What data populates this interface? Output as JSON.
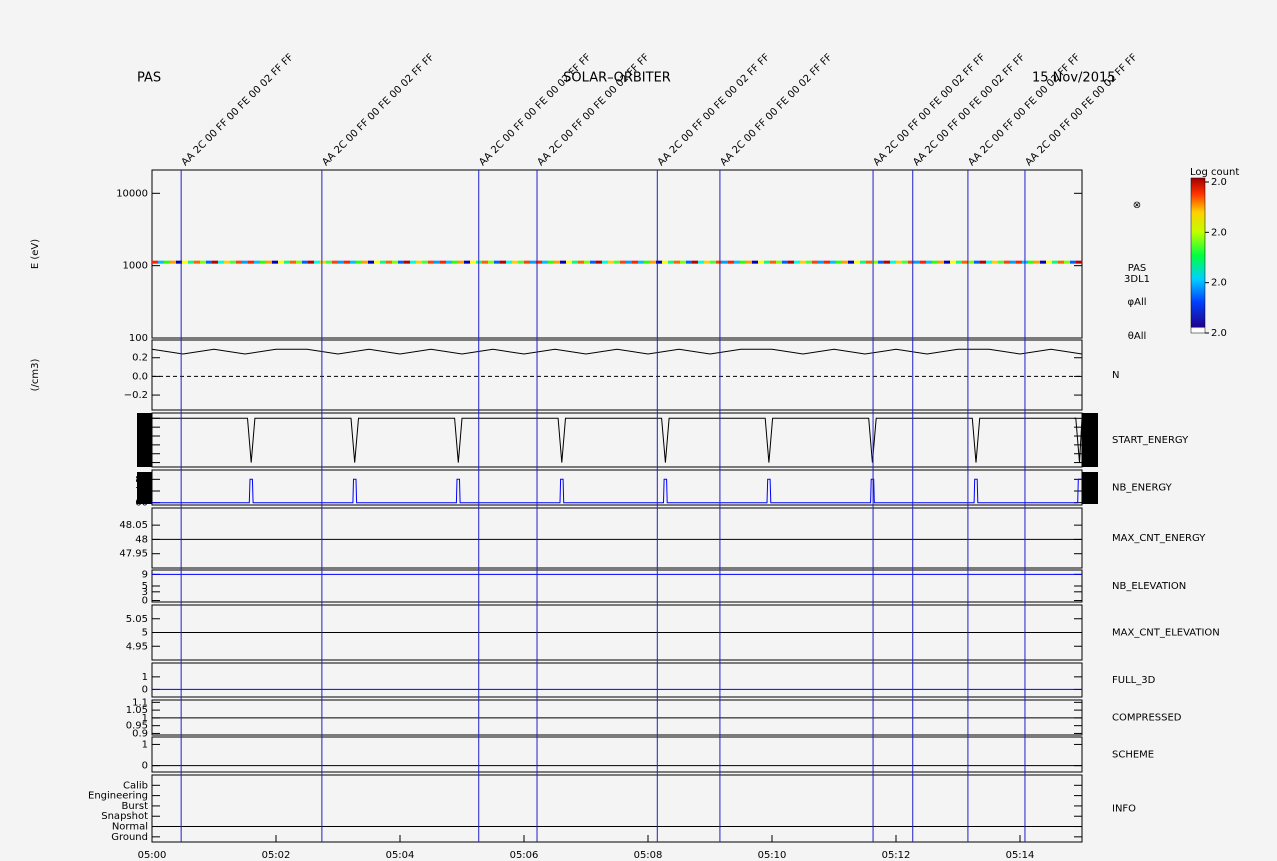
{
  "header": {
    "left": "PAS",
    "center": "SOLAR–ORBITER",
    "right": "15 Nov/2015"
  },
  "time_axis": {
    "xlim": [
      0,
      15
    ],
    "xticks": [
      {
        "value": 0,
        "label": "05:00"
      },
      {
        "value": 2,
        "label": "05:02"
      },
      {
        "value": 4,
        "label": "05:04"
      },
      {
        "value": 6,
        "label": "05:06"
      },
      {
        "value": 8,
        "label": "05:08"
      },
      {
        "value": 10,
        "label": "05:10"
      },
      {
        "value": 12,
        "label": "05:12"
      },
      {
        "value": 14,
        "label": "05:14"
      }
    ]
  },
  "events": [
    {
      "x": 0.47,
      "label": "AA 2C 00 FF 00 FE 00 02 FF FF"
    },
    {
      "x": 2.74,
      "label": "AA 2C 00 FF 00 FE 00 02 FF FF"
    },
    {
      "x": 5.27,
      "label": "AA 2C 00 FF 00 FE 00 02 FF FF"
    },
    {
      "x": 6.21,
      "label": "AA 2C 00 FF 00 FE 00 02 FF FF"
    },
    {
      "x": 8.15,
      "label": "AA 2C 00 FF 00 FE 00 02 FF FF"
    },
    {
      "x": 9.16,
      "label": "AA 2C 00 FF 00 FE 00 02 FF FF"
    },
    {
      "x": 11.63,
      "label": "AA 2C 00 FF 00 FE 00 02 FF FF"
    },
    {
      "x": 12.27,
      "label": "AA 2C 00 FF 00 FE 00 02 FF FF"
    },
    {
      "x": 13.16,
      "label": "AA 2C 00 FF 00 FE 00 02 FF FF"
    },
    {
      "x": 14.08,
      "label": "AA 2C 00 FF 00 FE 00 02 FF FF"
    }
  ],
  "colorbar": {
    "label": "Log count",
    "clim": [
      2.0,
      2.03
    ],
    "ticks": [
      {
        "value": 2.0,
        "label": "2.0"
      },
      {
        "value": 2.01,
        "label": "2.0"
      },
      {
        "value": 2.02,
        "label": "2.0"
      },
      {
        "value": 2.03,
        "label": "2.0"
      }
    ]
  },
  "chart_data": [
    {
      "type": "spectrogram",
      "ylabel": "E (eV)",
      "log_scale": true,
      "ylim": [
        100,
        21000
      ],
      "yticks": [
        100,
        1000,
        10000
      ],
      "energy": 1100,
      "symbol": "⊗",
      "right_labels": [
        "PAS",
        "3DL1",
        "φAll",
        "θAll"
      ],
      "colors": [
        "#ff2000",
        "#00c0ff",
        "#30ff00",
        "#ffa000",
        "#0000c0",
        "#ffff00",
        "#00ff80",
        "#ff6000",
        "#80ff00",
        "#0060ff",
        "#c00000",
        "#00ffe0",
        "#ffd000",
        "#40ff40",
        "#ff4000",
        "#00a0ff"
      ]
    },
    {
      "type": "line",
      "ylabel": "(/cm3)",
      "label": "N",
      "color": "#000000",
      "ylim": [
        -0.36,
        0.39
      ],
      "yticks": [
        {
          "value": -0.2,
          "label": "−0.2"
        },
        {
          "value": 0.0,
          "label": "0.0"
        },
        {
          "value": 0.2,
          "label": "0.2"
        }
      ],
      "x": [
        0,
        0.5,
        1,
        1.5,
        2,
        2.5,
        3,
        3.5,
        4,
        4.5,
        5,
        5.5,
        6,
        6.5,
        7,
        7.5,
        8,
        8.5,
        9,
        9.5,
        10,
        10.5,
        11,
        11.5,
        12,
        12.5,
        13,
        13.5,
        14,
        14.5,
        15
      ],
      "values": [
        0.29,
        0.24,
        0.29,
        0.24,
        0.29,
        0.29,
        0.24,
        0.29,
        0.24,
        0.29,
        0.24,
        0.29,
        0.24,
        0.29,
        0.24,
        0.29,
        0.24,
        0.29,
        0.24,
        0.29,
        0.29,
        0.24,
        0.29,
        0.24,
        0.29,
        0.24,
        0.29,
        0.29,
        0.24,
        0.29,
        0.24
      ]
    },
    {
      "type": "line",
      "label": "START_ENERGY",
      "color": "#000000",
      "ylim": [
        3.5,
        9.6
      ],
      "yticks": [
        4,
        5,
        6,
        7,
        8,
        9
      ],
      "x": [
        0,
        1.54,
        1.6,
        1.66,
        3.21,
        3.27,
        3.33,
        4.88,
        4.94,
        5.0,
        6.55,
        6.61,
        6.67,
        8.22,
        8.28,
        8.34,
        9.89,
        9.95,
        10.01,
        11.56,
        11.62,
        11.68,
        13.23,
        13.29,
        13.35,
        14.9,
        14.96,
        15
      ],
      "values": [
        9,
        9,
        4,
        9,
        9,
        4,
        9,
        9,
        4,
        9,
        9,
        4,
        9,
        9,
        4,
        9,
        9,
        4,
        9,
        9,
        4,
        9,
        9,
        4,
        9,
        9,
        4,
        9
      ]
    },
    {
      "type": "line",
      "label": "NB_ENERGY",
      "color": "#0000ff",
      "ylim": [
        58,
        88
      ],
      "yticks": [
        60,
        70,
        80
      ],
      "x": [
        0,
        1.57,
        1.58,
        1.62,
        1.63,
        3.24,
        3.25,
        3.29,
        3.3,
        4.91,
        4.92,
        4.96,
        4.97,
        6.58,
        6.59,
        6.63,
        6.64,
        8.25,
        8.26,
        8.3,
        8.31,
        9.92,
        9.93,
        9.97,
        9.98,
        11.59,
        11.6,
        11.64,
        11.65,
        13.26,
        13.27,
        13.31,
        13.32,
        14.93,
        14.94,
        15
      ],
      "values": [
        60,
        60,
        80,
        80,
        60,
        60,
        80,
        80,
        60,
        60,
        80,
        80,
        60,
        60,
        80,
        80,
        60,
        60,
        80,
        80,
        60,
        60,
        80,
        80,
        60,
        60,
        80,
        80,
        60,
        60,
        80,
        80,
        60,
        60,
        80,
        80
      ]
    },
    {
      "type": "line",
      "label": "MAX_CNT_ENERGY",
      "color": "#000000",
      "ylim": [
        47.9,
        48.11
      ],
      "yticks": [
        47.95,
        48.0,
        48.05
      ],
      "x": [
        0,
        15
      ],
      "values": [
        48.0,
        48.0
      ]
    },
    {
      "type": "line",
      "label": "NB_ELEVATION",
      "color": "#0000ff",
      "ylim": [
        -0.5,
        10.5
      ],
      "yticks": [
        0,
        3,
        5,
        9
      ],
      "x": [
        0,
        15
      ],
      "values": [
        9,
        9
      ]
    },
    {
      "type": "line",
      "label": "MAX_CNT_ELEVATION",
      "color": "#000000",
      "ylim": [
        4.9,
        5.1
      ],
      "yticks": [
        4.95,
        5.0,
        5.05
      ],
      "x": [
        0,
        15
      ],
      "values": [
        5.0,
        5.0
      ]
    },
    {
      "type": "line",
      "label": "FULL_3D",
      "color": "#0000ff",
      "ylim": [
        -0.6,
        2.1
      ],
      "yticks": [
        0,
        1
      ],
      "x": [
        0,
        15
      ],
      "values": [
        0,
        0
      ]
    },
    {
      "type": "line",
      "label": "COMPRESSED",
      "color": "#000000",
      "ylim": [
        0.89,
        1.115
      ],
      "yticks": [
        0.9,
        0.95,
        1.0,
        1.05,
        1.1
      ],
      "x": [
        0,
        15
      ],
      "values": [
        1.0,
        1.0
      ]
    },
    {
      "type": "line",
      "label": "SCHEME",
      "color": "#000000",
      "ylim": [
        -0.3,
        1.35
      ],
      "yticks": [
        0,
        1
      ],
      "x": [
        0,
        15
      ],
      "values": [
        0,
        0
      ]
    },
    {
      "type": "line",
      "label": "INFO",
      "color": "#000000",
      "ylim": [
        -0.5,
        6.0
      ],
      "yticks": [
        {
          "value": 0,
          "label": "Ground"
        },
        {
          "value": 1,
          "label": "Normal"
        },
        {
          "value": 2,
          "label": "Snapshot"
        },
        {
          "value": 3,
          "label": "Burst"
        },
        {
          "value": 4,
          "label": "Engineering"
        },
        {
          "value": 5,
          "label": "Calib"
        }
      ],
      "x": [
        0,
        15
      ],
      "values": [
        1,
        1
      ]
    }
  ]
}
